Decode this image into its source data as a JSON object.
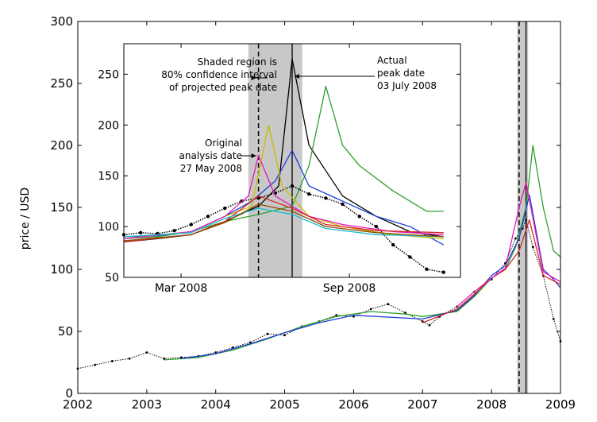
{
  "chart_data": [
    {
      "type": "line",
      "ylabel": "price / USD",
      "xlim": [
        2002,
        2009
      ],
      "ylim": [
        0,
        300
      ],
      "x_ticks": [
        "2002",
        "2003",
        "2004",
        "2005",
        "2006",
        "2007",
        "2008",
        "2009"
      ],
      "y_ticks": [
        "0",
        "50",
        "100",
        "150",
        "200",
        "250",
        "300"
      ],
      "confidence_band": [
        2008.37,
        2008.53
      ],
      "analysis_date": 2008.4,
      "peak_date": 2008.5,
      "series": [
        {
          "color": "#000000",
          "style": "points",
          "x": [
            2002.0,
            2002.25,
            2002.5,
            2002.75,
            2003.0,
            2003.25,
            2003.5,
            2003.75,
            2004.0,
            2004.25,
            2004.5,
            2004.75,
            2005.0,
            2005.25,
            2005.5,
            2005.75,
            2006.0,
            2006.25,
            2006.5,
            2006.75,
            2007.0,
            2007.1,
            2007.25,
            2007.5,
            2007.75,
            2008.0,
            2008.2,
            2008.35,
            2008.45,
            2008.5,
            2008.6,
            2008.75,
            2008.9,
            2009.0
          ],
          "y": [
            20,
            23,
            26,
            28,
            33,
            28,
            29,
            30,
            33,
            37,
            41,
            48,
            47,
            54,
            58,
            63,
            62,
            68,
            72,
            65,
            58,
            55,
            62,
            70,
            82,
            92,
            105,
            125,
            133,
            140,
            118,
            95,
            60,
            42
          ]
        },
        {
          "color": "#2ca02c",
          "style": "line",
          "x": [
            2003.25,
            2003.75,
            2004.25,
            2004.75,
            2005.25,
            2005.75,
            2006.25,
            2006.75,
            2007.0,
            2007.5,
            2007.75,
            2008.0,
            2008.2,
            2008.35,
            2008.5,
            2008.6,
            2008.75,
            2008.9,
            2009.0
          ],
          "y": [
            27,
            29,
            35,
            44,
            54,
            62,
            66,
            64,
            62,
            66,
            78,
            93,
            100,
            118,
            150,
            200,
            150,
            115,
            110
          ]
        },
        {
          "color": "#1f3fd6",
          "style": "line",
          "x": [
            2003.5,
            2004.0,
            2004.5,
            2005.0,
            2005.5,
            2006.0,
            2007.0,
            2007.5,
            2007.75,
            2008.0,
            2008.2,
            2008.4,
            2008.55,
            2008.75,
            2008.9,
            2009.0
          ],
          "y": [
            28,
            32,
            40,
            49,
            57,
            63,
            60,
            67,
            79,
            95,
            103,
            125,
            160,
            100,
            92,
            85
          ]
        },
        {
          "color": "#d62728",
          "style": "line",
          "x": [
            2007.0,
            2007.5,
            2007.75,
            2008.0,
            2008.2,
            2008.4,
            2008.55,
            2008.75,
            2009.0
          ],
          "y": [
            57,
            68,
            80,
            93,
            100,
            115,
            140,
            95,
            88
          ]
        },
        {
          "color": "#e41ab5",
          "style": "line",
          "x": [
            2007.5,
            2007.75,
            2008.0,
            2008.2,
            2008.4,
            2008.5,
            2008.75,
            2009.0
          ],
          "y": [
            70,
            82,
            93,
            101,
            150,
            170,
            98,
            90
          ]
        }
      ]
    },
    {
      "type": "line",
      "x_ticks": [
        "Mar 2008",
        "Sep 2008"
      ],
      "xlim": [
        2008.0,
        2009.0
      ],
      "ylim": [
        50,
        280
      ],
      "y_ticks": [
        "50",
        "100",
        "150",
        "200",
        "250"
      ],
      "confidence_band": [
        2008.37,
        2008.53
      ],
      "analysis_date": 2008.4,
      "peak_date": 2008.5,
      "annotations": {
        "shaded_note": [
          "Shaded region is",
          "80% confidence interval",
          "of projected peak date"
        ],
        "analysis_note": [
          "Original",
          "analysis date",
          "27 May 2008"
        ],
        "peak_note": [
          "Actual",
          "peak date",
          "03 July 2008"
        ]
      },
      "series": [
        {
          "color": "#000000",
          "style": "points",
          "x": [
            2008.0,
            2008.05,
            2008.1,
            2008.15,
            2008.2,
            2008.25,
            2008.3,
            2008.35,
            2008.4,
            2008.45,
            2008.5,
            2008.55,
            2008.6,
            2008.65,
            2008.7,
            2008.75,
            2008.8,
            2008.85,
            2008.9,
            2008.95
          ],
          "y": [
            92,
            94,
            93,
            96,
            102,
            110,
            118,
            125,
            128,
            133,
            140,
            132,
            128,
            122,
            110,
            100,
            82,
            70,
            58,
            55
          ]
        },
        {
          "color": "#000000",
          "style": "line",
          "x": [
            2008.0,
            2008.1,
            2008.2,
            2008.3,
            2008.4,
            2008.46,
            2008.5,
            2008.55,
            2008.6,
            2008.65,
            2008.75,
            2008.85,
            2008.95
          ],
          "y": [
            85,
            88,
            92,
            105,
            120,
            140,
            265,
            180,
            155,
            130,
            110,
            95,
            90
          ]
        },
        {
          "color": "#2ca02c",
          "style": "line",
          "x": [
            2008.0,
            2008.1,
            2008.2,
            2008.3,
            2008.4,
            2008.5,
            2008.55,
            2008.6,
            2008.65,
            2008.7,
            2008.8,
            2008.9,
            2008.95
          ],
          "y": [
            88,
            90,
            95,
            105,
            112,
            120,
            160,
            238,
            180,
            160,
            135,
            115,
            115
          ]
        },
        {
          "color": "#1f3fd6",
          "style": "line",
          "x": [
            2008.0,
            2008.1,
            2008.2,
            2008.3,
            2008.38,
            2008.45,
            2008.5,
            2008.55,
            2008.65,
            2008.75,
            2008.85,
            2008.95
          ],
          "y": [
            90,
            91,
            95,
            110,
            125,
            145,
            175,
            140,
            125,
            110,
            100,
            82
          ]
        },
        {
          "color": "#ccbb00",
          "style": "line",
          "x": [
            2008.0,
            2008.2,
            2008.3,
            2008.38,
            2008.43,
            2008.47,
            2008.55,
            2008.65,
            2008.8,
            2008.95
          ],
          "y": [
            88,
            95,
            110,
            120,
            200,
            140,
            110,
            100,
            92,
            88
          ]
        },
        {
          "color": "#e41ab5",
          "style": "line",
          "x": [
            2008.0,
            2008.2,
            2008.3,
            2008.37,
            2008.4,
            2008.45,
            2008.55,
            2008.65,
            2008.8,
            2008.95
          ],
          "y": [
            88,
            95,
            110,
            130,
            170,
            130,
            110,
            102,
            95,
            92
          ]
        },
        {
          "color": "#d62728",
          "style": "line",
          "x": [
            2008.0,
            2008.2,
            2008.3,
            2008.4,
            2008.5,
            2008.6,
            2008.75,
            2008.95
          ],
          "y": [
            85,
            92,
            105,
            130,
            118,
            102,
            96,
            94
          ]
        },
        {
          "color": "#17becf",
          "style": "line",
          "x": [
            2008.0,
            2008.2,
            2008.3,
            2008.4,
            2008.5,
            2008.6,
            2008.75,
            2008.95
          ],
          "y": [
            90,
            94,
            108,
            118,
            112,
            98,
            92,
            90
          ]
        },
        {
          "color": "#8c4a00",
          "style": "line",
          "x": [
            2008.0,
            2008.2,
            2008.3,
            2008.4,
            2008.5,
            2008.6,
            2008.75,
            2008.95
          ],
          "y": [
            86,
            92,
            104,
            122,
            115,
            100,
            94,
            90
          ]
        }
      ]
    }
  ]
}
